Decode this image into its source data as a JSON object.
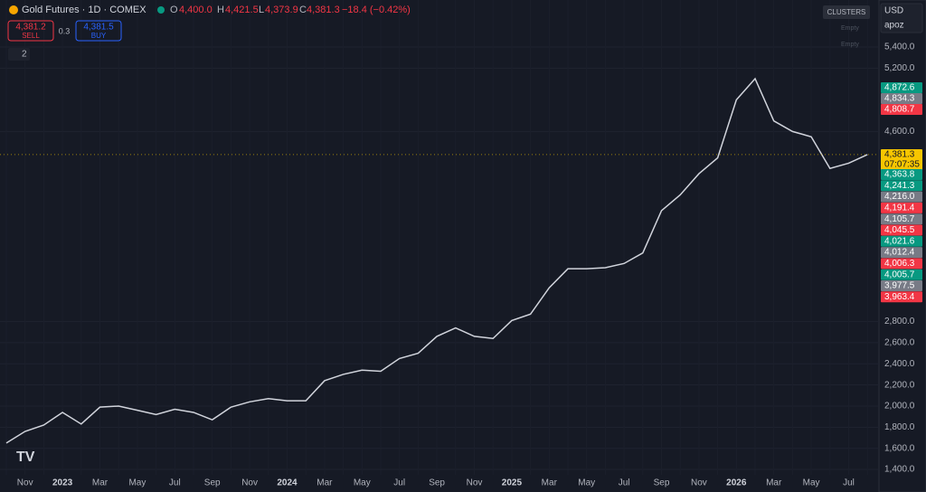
{
  "header": {
    "symbol": "Gold Futures · 1D · COMEX",
    "o_label": "O",
    "open": "4,400.0",
    "h_label": "H",
    "high": "4,421.5",
    "l_label": "L",
    "low": "4,373.9",
    "c_label": "C",
    "close": "4,381.3",
    "change": "−18.4 (−0.42%)",
    "sell_price": "4,381.2",
    "sell": "SELL",
    "spread": "0.3",
    "buy_price": "4,381.5",
    "buy": "BUY",
    "indicators": "2"
  },
  "toolbar": {
    "clusters": "CLUSTERS",
    "currency": "USD",
    "user": "apoz",
    "empty_1": "Empty",
    "empty_2": "Empty"
  },
  "price_tags": {
    "upper": [
      {
        "label": "4,872.6",
        "color": "#089981"
      },
      {
        "label": "4,834.3",
        "color": "#787b86"
      },
      {
        "label": "4,808.7",
        "color": "#f23645"
      }
    ],
    "current": {
      "label": "4,381.3",
      "time": "07:07:35",
      "color": "#f7c600"
    },
    "lower": [
      {
        "label": "4,363.8",
        "color": "#089981"
      },
      {
        "label": "4,241.3",
        "color": "#089981"
      },
      {
        "label": "4,216.0",
        "color": "#787b86"
      },
      {
        "label": "4,191.4",
        "color": "#f23645"
      },
      {
        "label": "4,105.7",
        "color": "#787b86"
      },
      {
        "label": "4,045.5",
        "color": "#f23645"
      },
      {
        "label": "4,021.6",
        "color": "#089981"
      },
      {
        "label": "4,012.4",
        "color": "#787b86"
      },
      {
        "label": "4,006.3",
        "color": "#f23645"
      },
      {
        "label": "4,005.7",
        "color": "#089981"
      },
      {
        "label": "3,977.5",
        "color": "#787b86"
      },
      {
        "label": "3,963.4",
        "color": "#f23645"
      }
    ]
  },
  "chart_data": {
    "type": "line",
    "categories": [
      null,
      "Nov",
      null,
      "2023",
      null,
      "Mar",
      null,
      "May",
      null,
      "Jul",
      null,
      "Sep",
      null,
      "Nov",
      null,
      "2024",
      null,
      "Mar",
      null,
      "May",
      null,
      "Jul",
      null,
      "Sep",
      null,
      "Nov",
      null,
      "2025",
      null,
      "Mar",
      null,
      "May",
      null,
      "Jul",
      null,
      "Sep",
      null,
      "Nov",
      null,
      "2026",
      null,
      "Mar",
      null,
      "May",
      null,
      "Jul",
      null
    ],
    "series": [
      {
        "name": "Gold Futures",
        "color": "#d1d4dc",
        "values": [
          1650,
          1760,
          1820,
          1940,
          1830,
          1990,
          2000,
          1960,
          1920,
          1970,
          1940,
          1870,
          1990,
          2040,
          2070,
          2050,
          2050,
          2240,
          2300,
          2340,
          2330,
          2450,
          2500,
          2660,
          2740,
          2660,
          2640,
          2810,
          2870,
          3120,
          3300,
          3300,
          3310,
          3350,
          3450,
          3850,
          4000,
          4200,
          4350,
          4900,
          5100,
          4700,
          4600,
          4550,
          4250,
          4300,
          4381.3
        ]
      }
    ],
    "ylim": [
      1349,
      5845
    ],
    "yticks": [
      {
        "value": 1400,
        "label": "1,400.0"
      },
      {
        "value": 1600,
        "label": "1,600.0"
      },
      {
        "value": 1800,
        "label": "1,800.0"
      },
      {
        "value": 2000,
        "label": "2,000.0"
      },
      {
        "value": 2200,
        "label": "2,200.0"
      },
      {
        "value": 2400,
        "label": "2,400.0"
      },
      {
        "value": 2600,
        "label": "2,600.0"
      },
      {
        "value": 2800,
        "label": "2,800.0"
      },
      {
        "value": 4600,
        "label": "4,600.0"
      },
      {
        "value": 5200,
        "label": "5,200.0"
      },
      {
        "value": 5400,
        "label": "5,400.0"
      }
    ],
    "grid": true
  }
}
